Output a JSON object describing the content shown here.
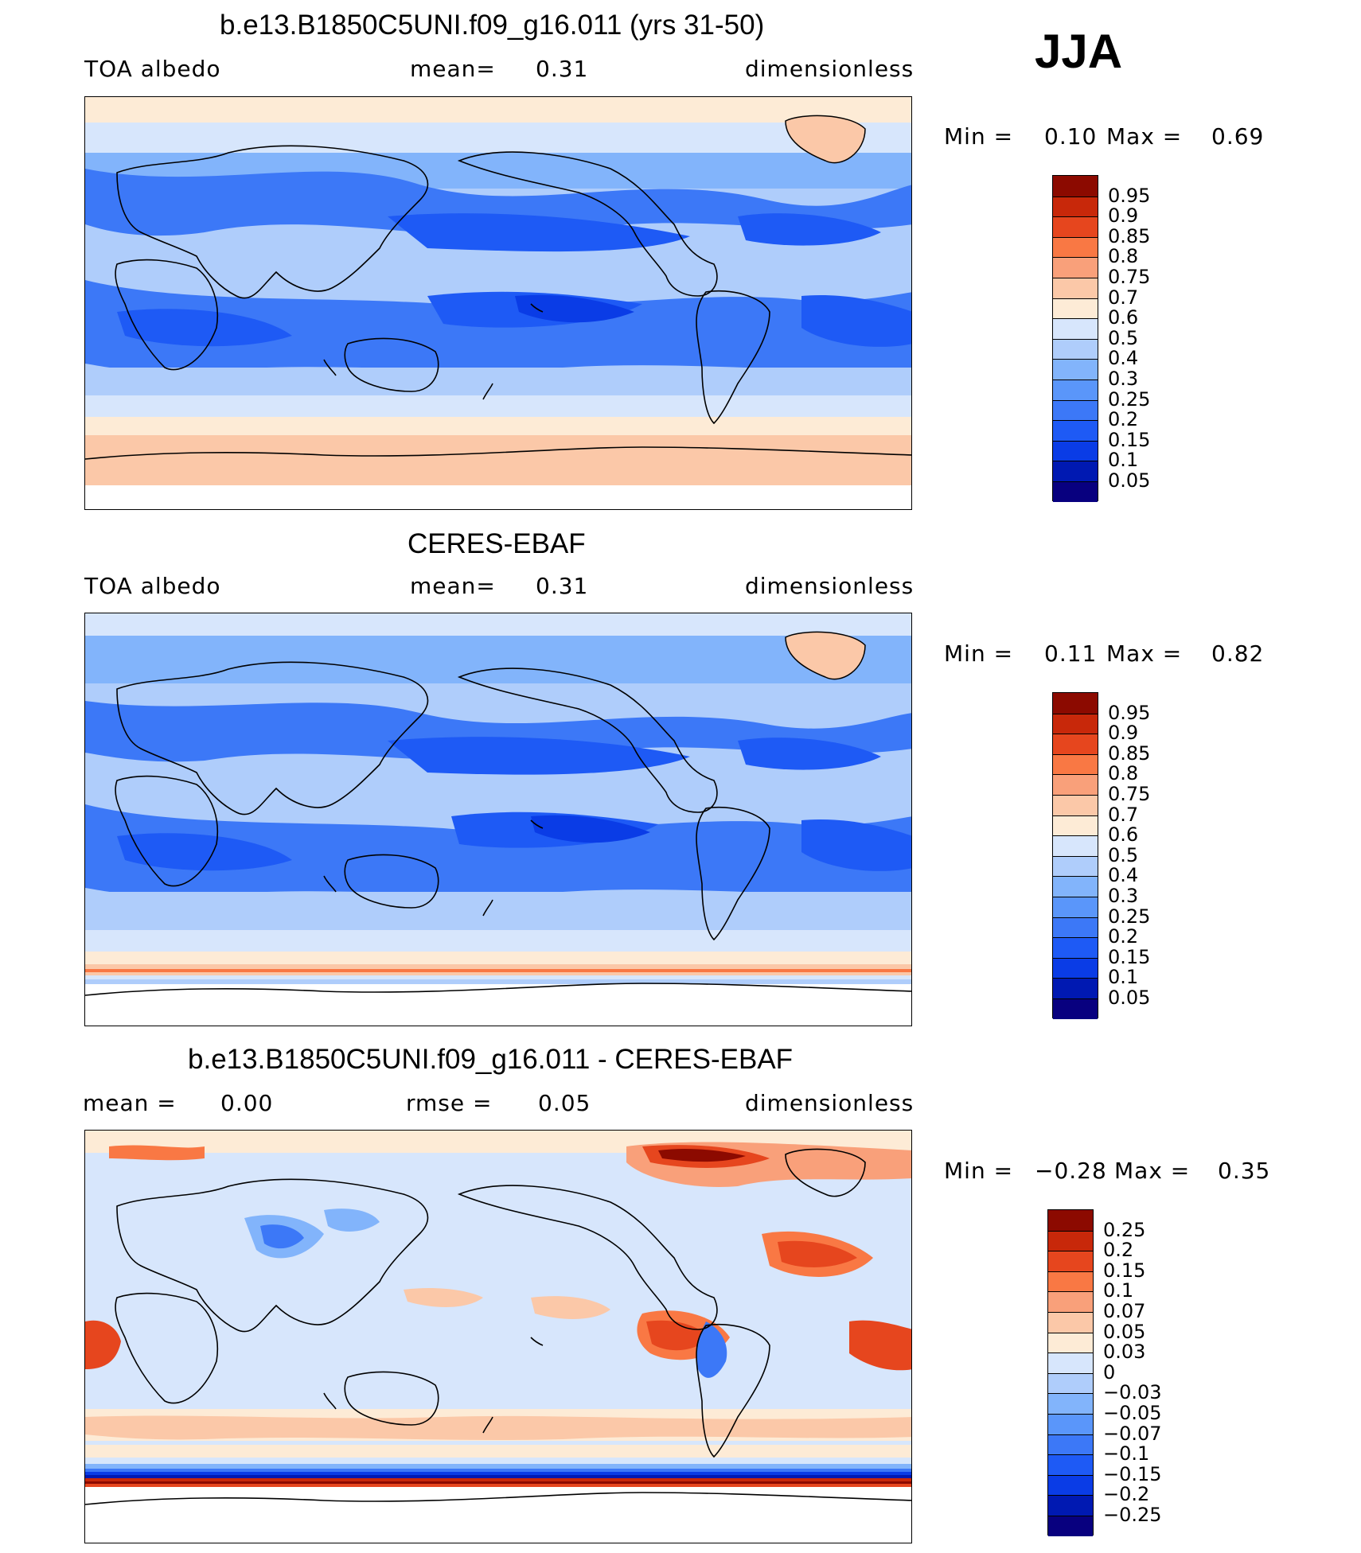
{
  "season": "JJA",
  "colors": {
    "abs_scale": [
      "#08007f",
      "#0019b2",
      "#0a3ce6",
      "#1e5af5",
      "#3c78f7",
      "#5a96fa",
      "#82b4fb",
      "#afcdfb",
      "#d7e6fc",
      "#fdebd6",
      "#fbc8a8",
      "#f9a07a",
      "#f97844",
      "#e6461e",
      "#c8280a",
      "#8c0a00"
    ],
    "diff_scale": [
      "#08007f",
      "#0019b2",
      "#0a3ce6",
      "#1e5af5",
      "#3c78f7",
      "#5a96fa",
      "#82b4fb",
      "#afcdfb",
      "#d7e6fc",
      "#fdebd6",
      "#fbc8a8",
      "#f9a07a",
      "#f97844",
      "#e6461e",
      "#c8280a",
      "#8c0a00"
    ]
  },
  "panels": [
    {
      "title": "b.e13.B1850C5UNI.f09_g16.011 (yrs 31-50)",
      "left": "TOA albedo",
      "mid_label": "mean=",
      "mid_value": "0.31",
      "right": "dimensionless",
      "min_label": "Min =",
      "min_value": "0.10",
      "max_label": "Max =",
      "max_value": "0.69",
      "colorbar_labels": [
        "0.95",
        "0.9",
        "0.85",
        "0.8",
        "0.75",
        "0.7",
        "0.6",
        "0.5",
        "0.4",
        "0.3",
        "0.25",
        "0.2",
        "0.15",
        "0.1",
        "0.05"
      ]
    },
    {
      "title": "CERES-EBAF",
      "left": "TOA albedo",
      "mid_label": "mean=",
      "mid_value": "0.31",
      "right": "dimensionless",
      "min_label": "Min =",
      "min_value": "0.11",
      "max_label": "Max =",
      "max_value": "0.82",
      "colorbar_labels": [
        "0.95",
        "0.9",
        "0.85",
        "0.8",
        "0.75",
        "0.7",
        "0.6",
        "0.5",
        "0.4",
        "0.3",
        "0.25",
        "0.2",
        "0.15",
        "0.1",
        "0.05"
      ]
    },
    {
      "title": "b.e13.B1850C5UNI.f09_g16.011 - CERES-EBAF",
      "left_label": "mean =",
      "left_value": "0.00",
      "mid_label": "rmse =",
      "mid_value": "0.05",
      "right": "dimensionless",
      "min_label": "Min =",
      "min_value": "−0.28",
      "max_label": "Max =",
      "max_value": "0.35",
      "colorbar_labels": [
        "0.25",
        "0.2",
        "0.15",
        "0.1",
        "0.07",
        "0.05",
        "0.03",
        "0",
        "−0.03",
        "−0.05",
        "−0.07",
        "−0.1",
        "−0.15",
        "−0.2",
        "−0.25"
      ]
    }
  ]
}
